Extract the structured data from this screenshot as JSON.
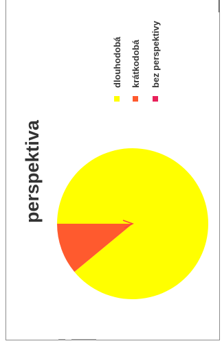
{
  "chart_data": {
    "type": "pie",
    "title": "perspektiva",
    "series": [
      {
        "name": "dlouhodobá",
        "value": 89,
        "color": "#ffff00"
      },
      {
        "name": "krátkodobá",
        "value": 11,
        "color": "#ff5a2e"
      },
      {
        "name": "bez perspektivy",
        "value": 0,
        "color": "#e8205a"
      }
    ],
    "legend": "top-right",
    "orientation": "rotated-90-ccw"
  }
}
